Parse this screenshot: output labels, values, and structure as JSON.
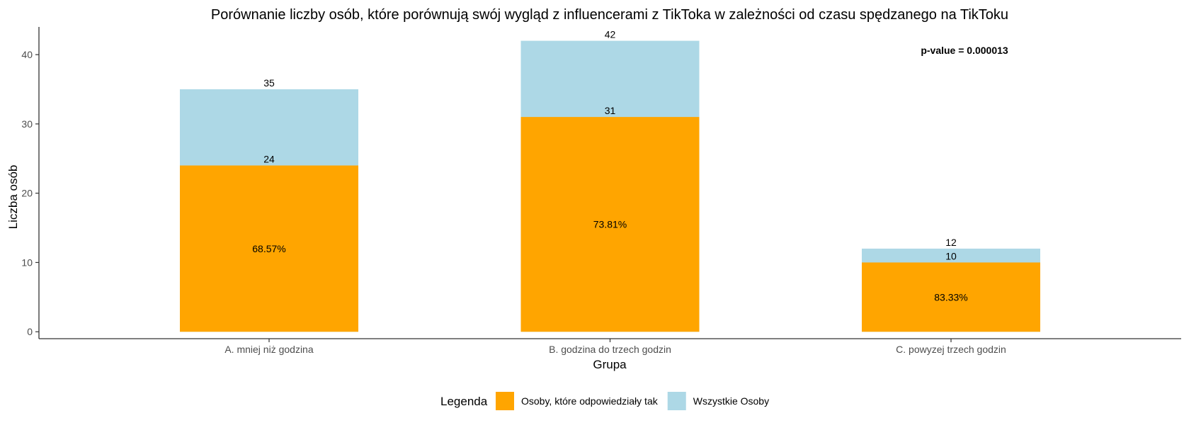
{
  "chart_data": {
    "type": "bar",
    "stacked_overlay": true,
    "title": "Porównanie liczby osób, które porównują swój wygląd z influencerami z TikToka w zależności od czasu spędzanego na TikToku",
    "xlabel": "Grupa",
    "ylabel": "Liczba osób",
    "ylim": [
      -1,
      44
    ],
    "yticks": [
      0,
      10,
      20,
      30,
      40
    ],
    "grid": false,
    "categories": [
      "A. mniej niż godzina",
      "B. godzina do trzech godzin",
      "C. powyzej trzech godzin"
    ],
    "series": [
      {
        "name": "Wszystkie Osoby",
        "values": [
          35,
          42,
          12
        ],
        "color": "#ADD8E6"
      },
      {
        "name": "Osoby, które odpowiedziały tak",
        "values": [
          24,
          31,
          10
        ],
        "color": "#FFA500"
      }
    ],
    "total_labels": [
      "35",
      "42",
      "12"
    ],
    "yes_labels": [
      "24",
      "31",
      "10"
    ],
    "percent_labels": [
      "68.57%",
      "73.81%",
      "83.33%"
    ],
    "annotation": "p-value = 0.000013",
    "legend": {
      "position": "bottom",
      "title": "Legenda",
      "items": [
        {
          "label": "Osoby, które odpowiedziały tak",
          "color": "#FFA500"
        },
        {
          "label": "Wszystkie Osoby",
          "color": "#ADD8E6"
        }
      ]
    }
  }
}
